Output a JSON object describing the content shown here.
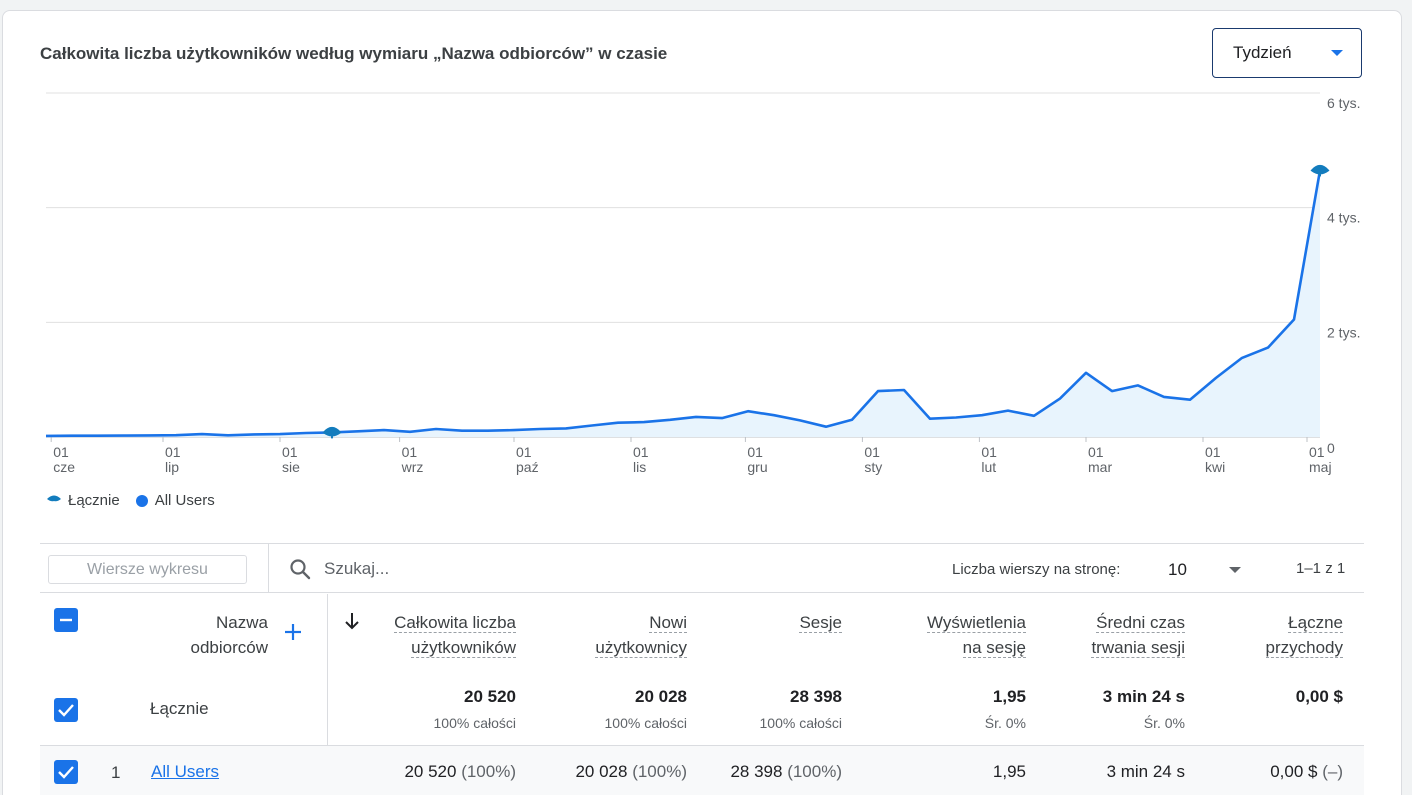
{
  "card": {
    "title": "Całkowita liczba użytkowników według wymiaru „Nazwa odbiorców” w czasie",
    "period_select": {
      "value": "Tydzień"
    }
  },
  "chart_data": {
    "type": "area",
    "title": "",
    "xlabel": "",
    "ylabel": "",
    "ylim": [
      0,
      6000
    ],
    "y_ticks": [
      "6 tys.",
      "4 tys.",
      "2 tys.",
      "0"
    ],
    "y_tick_values": [
      6000,
      4000,
      2000,
      0
    ],
    "x_ticks": [
      {
        "day": "01",
        "month": "cze"
      },
      {
        "day": "01",
        "month": "lip"
      },
      {
        "day": "01",
        "month": "sie"
      },
      {
        "day": "01",
        "month": "wrz"
      },
      {
        "day": "01",
        "month": "paź"
      },
      {
        "day": "01",
        "month": "lis"
      },
      {
        "day": "01",
        "month": "gru"
      },
      {
        "day": "01",
        "month": "sty"
      },
      {
        "day": "01",
        "month": "lut"
      },
      {
        "day": "01",
        "month": "mar"
      },
      {
        "day": "01",
        "month": "kwi"
      },
      {
        "day": "01",
        "month": "maj"
      }
    ],
    "x_tick_positions": [
      0.2,
      4.5,
      9.0,
      13.6,
      18.0,
      22.5,
      26.9,
      31.4,
      35.9,
      40.0,
      44.5,
      48.5
    ],
    "series": [
      {
        "name": "All Users",
        "color": "#1a73e8",
        "x": [
          0,
          1,
          2,
          3,
          4,
          5,
          6,
          7,
          8,
          9,
          10,
          11,
          12,
          13,
          14,
          15,
          16,
          17,
          18,
          19,
          20,
          21,
          22,
          23,
          24,
          25,
          26,
          27,
          28,
          29,
          30,
          31,
          32,
          33,
          34,
          35,
          36,
          37,
          38,
          39,
          40,
          41,
          42,
          43,
          44,
          45,
          46,
          47,
          48,
          49
        ],
        "values": [
          20,
          22,
          23,
          25,
          28,
          32,
          50,
          30,
          45,
          50,
          70,
          80,
          100,
          120,
          90,
          140,
          110,
          110,
          120,
          140,
          150,
          200,
          250,
          260,
          300,
          350,
          330,
          450,
          380,
          290,
          180,
          300,
          800,
          820,
          320,
          340,
          380,
          460,
          370,
          670,
          1120,
          800,
          900,
          700,
          650,
          1030,
          1380,
          1560,
          2050,
          4650
        ]
      }
    ],
    "markers": [
      {
        "name": "Łącznie",
        "x": 11,
        "y": 80
      },
      {
        "name": "Łącznie",
        "x": 49,
        "y": 4650
      }
    ],
    "x_count": 50,
    "grid": true,
    "legend_position": "bottom-left"
  },
  "legend": {
    "total_label": "Łącznie",
    "series_label": "All Users",
    "series_color": "#1a73e8",
    "total_color": "#137cbd"
  },
  "toolbar": {
    "chart_rows_button": "Wiersze wykresu",
    "search_placeholder": "Szukaj...",
    "rows_per_page_label": "Liczba wierszy na stronę:",
    "rows_per_page_value": "10",
    "pagination": "1–1 z 1"
  },
  "table": {
    "dimension_header": [
      "Nazwa",
      "odbiorców"
    ],
    "columns": [
      {
        "line1": "Całkowita liczba",
        "line2": "użytkowników"
      },
      {
        "line1": "Nowi",
        "line2": "użytkownicy"
      },
      {
        "line1": "Sesje",
        "line2": ""
      },
      {
        "line1": "Wyświetlenia",
        "line2": "na sesję"
      },
      {
        "line1": "Średni czas",
        "line2": "trwania sesji"
      },
      {
        "line1": "Łączne",
        "line2": "przychody"
      }
    ],
    "totals": {
      "label": "Łącznie",
      "values": [
        "20 520",
        "20 028",
        "28 398",
        "1,95",
        "3 min 24 s",
        "0,00 $"
      ],
      "subtexts": [
        "100% całości",
        "100% całości",
        "100% całości",
        "Śr. 0%",
        "Śr. 0%",
        ""
      ]
    },
    "rows": [
      {
        "index": "1",
        "name": "All Users",
        "values": [
          "20 520",
          "20 028",
          "28 398",
          "1,95",
          "3 min 24 s",
          "0,00 $"
        ],
        "shares": [
          "(100%)",
          "(100%)",
          "(100%)",
          "",
          "",
          "(–)"
        ]
      }
    ]
  }
}
